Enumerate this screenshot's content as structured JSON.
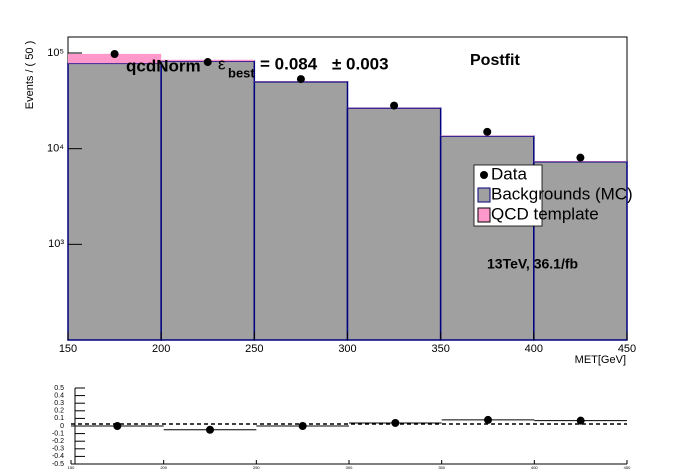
{
  "chart_data": [
    {
      "type": "histogram",
      "log_y": true,
      "bins": [
        150,
        200,
        250,
        300,
        350,
        400,
        450
      ],
      "xlim": [
        150,
        450
      ],
      "xticks": [
        150,
        200,
        250,
        300,
        350,
        400,
        450
      ],
      "ylim": [
        100,
        147000
      ],
      "yticks": [
        {
          "value": 1000,
          "label": "10³"
        },
        {
          "value": 10000,
          "label": "10⁴"
        },
        {
          "value": 100000,
          "label": "10⁵"
        }
      ],
      "ylabel": "Events / ( 50 )",
      "xlabel": "MET[GeV]",
      "annotations": [
        "qcdNorm",
        "ε",
        "best",
        "= 0.084",
        "± 0.003",
        "Postfit",
        "13TeV, 36.1/fb"
      ],
      "series": [
        {
          "name": "Data",
          "style": "points",
          "color": "#000000",
          "values": [
            97600,
            80500,
            53400,
            28200,
            15000,
            8050
          ]
        },
        {
          "name": "Backgrounds (MC)",
          "style": "stack",
          "color": "#a0a0a0",
          "edge": "#000080",
          "values": [
            78000,
            82000,
            50000,
            26500,
            13500,
            7300
          ]
        },
        {
          "name": "QCD template",
          "style": "stack",
          "color": "#ff99cc",
          "values": [
            20000,
            3000,
            500,
            300,
            200,
            100
          ]
        }
      ]
    },
    {
      "type": "scatter",
      "x": [
        175,
        225,
        275,
        325,
        375,
        425
      ],
      "values": [
        0.0,
        -0.05,
        0.0,
        0.04,
        0.08,
        0.07
      ],
      "xlim": [
        150,
        450
      ],
      "xticks": [
        150,
        200,
        250,
        300,
        350,
        400,
        450
      ],
      "ylim": [
        -0.5,
        0.5
      ],
      "yticks": [
        -0.5,
        -0.4,
        -0.3,
        -0.2,
        -0.1,
        0,
        0.1,
        0.2,
        0.3,
        0.4,
        0.5
      ]
    }
  ]
}
